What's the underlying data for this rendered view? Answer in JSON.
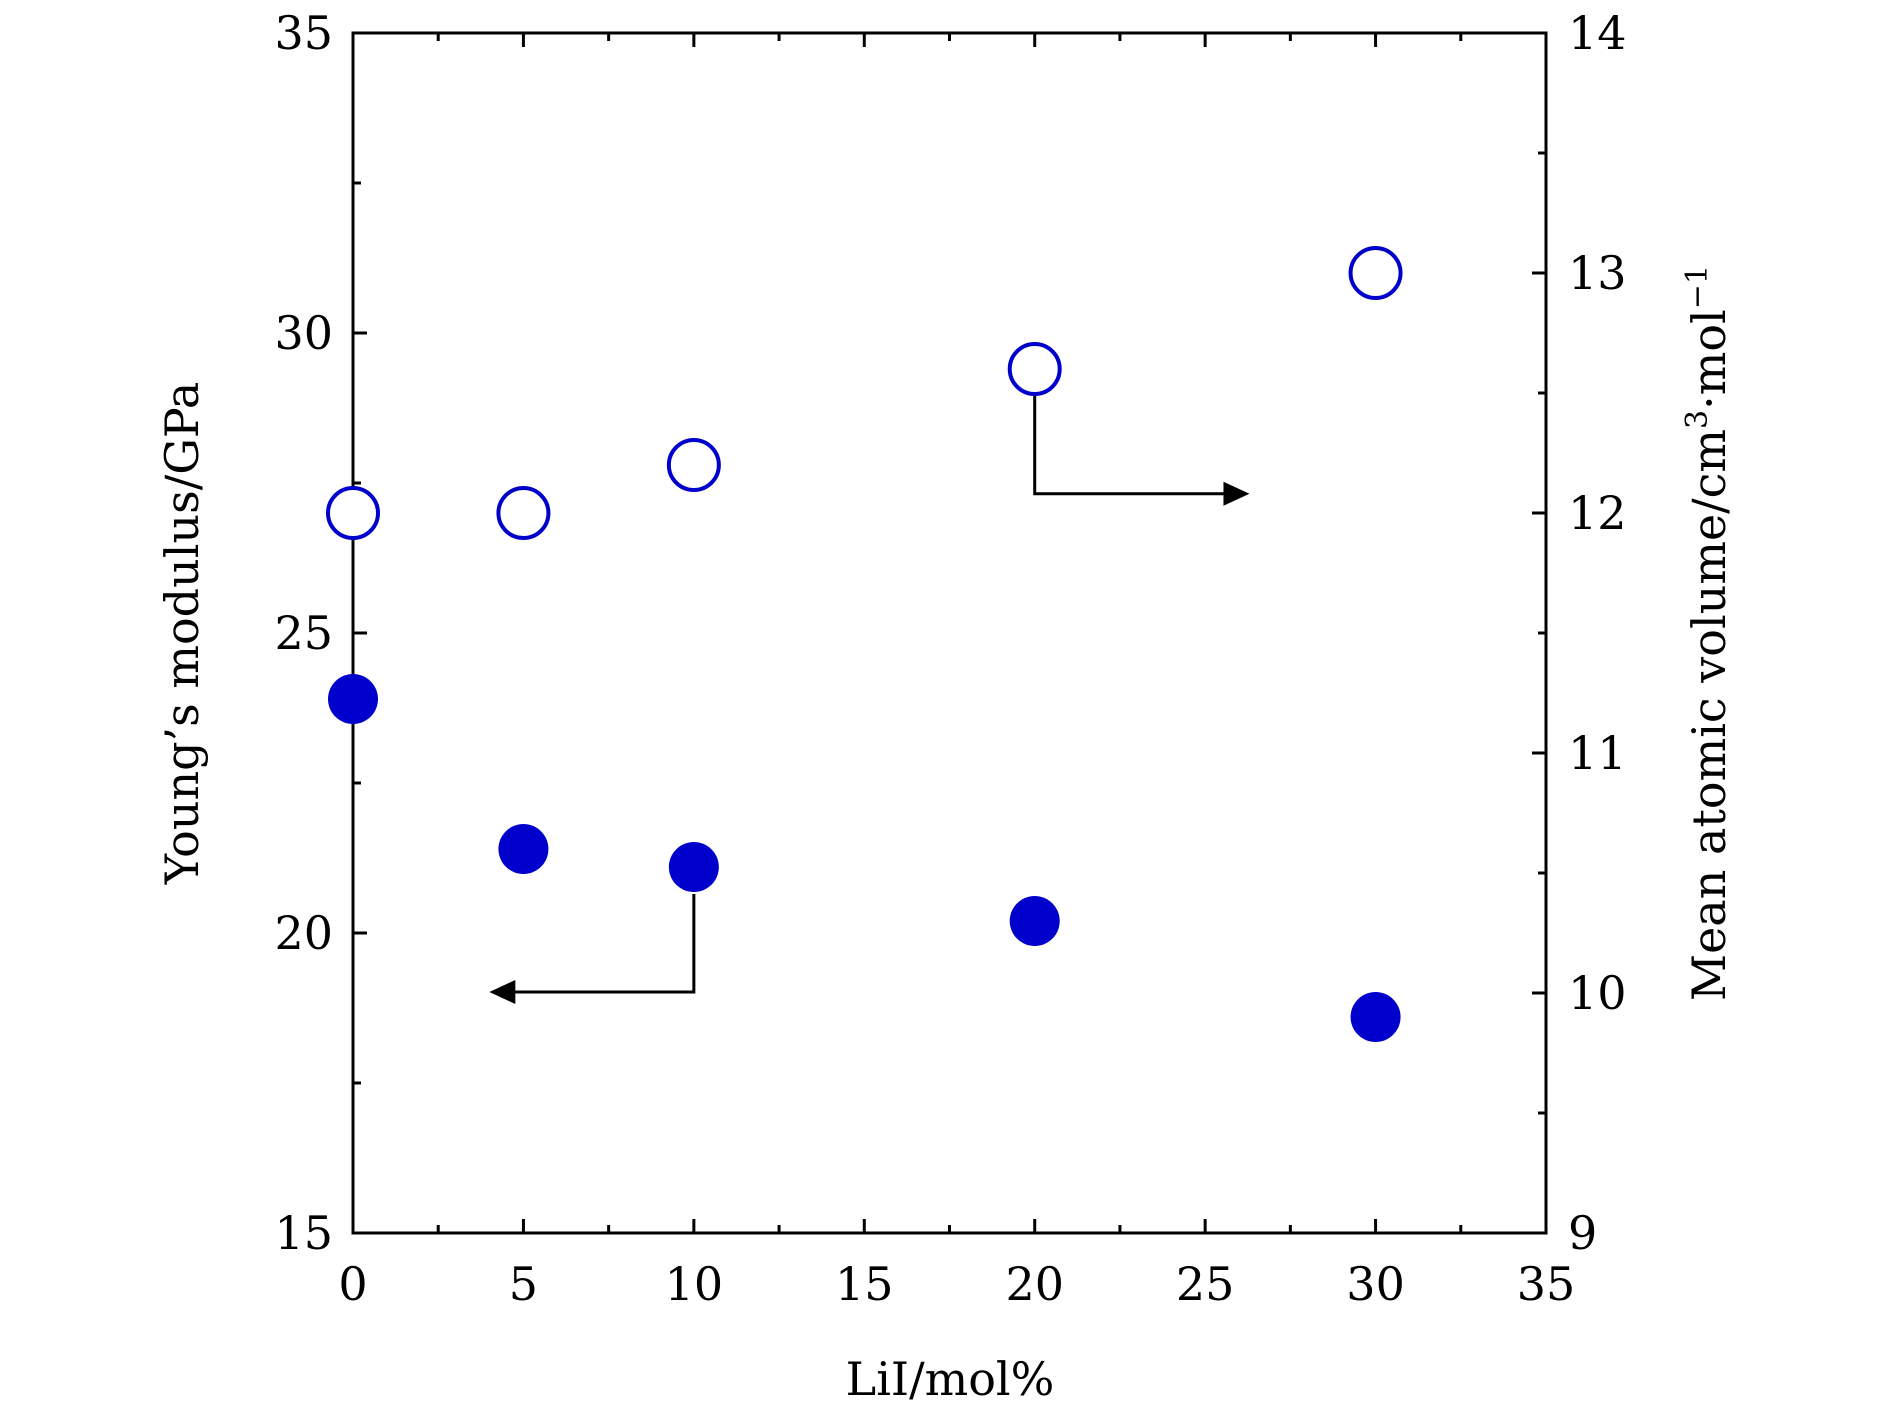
{
  "chart_data": {
    "type": "scatter",
    "xlabel": "LiI/mol%",
    "ylabel_left": "Young’s modulus/GPa",
    "ylabel_right": {
      "base": "Mean atomic volume/cm",
      "sup1": "3",
      "mid": "·mol",
      "sup2": "−1"
    },
    "xlim": [
      0,
      35
    ],
    "ylim_left": [
      15,
      35
    ],
    "ylim_right": [
      9,
      14
    ],
    "x_ticks": [
      "0",
      "5",
      "10",
      "15",
      "20",
      "25",
      "30",
      "35"
    ],
    "y_left_ticks": [
      "15",
      "20",
      "25",
      "30",
      "35"
    ],
    "y_right_ticks": [
      "9",
      "10",
      "11",
      "12",
      "13",
      "14"
    ],
    "grid": false,
    "series": [
      {
        "axis": "left",
        "marker": "filled-circle",
        "color": "#0000cc",
        "x": [
          0,
          5,
          10,
          20,
          30
        ],
        "y": [
          23.9,
          21.4,
          21.1,
          20.2,
          18.6
        ]
      },
      {
        "axis": "right",
        "marker": "open-circle",
        "color": "#0000cc",
        "x": [
          0,
          5,
          10,
          20,
          30
        ],
        "y": [
          12.0,
          12.0,
          12.2,
          12.6,
          13.0
        ]
      }
    ],
    "annotations": [
      {
        "type": "arrow",
        "direction": "left",
        "points_to_axis": "left",
        "from_series": 0
      },
      {
        "type": "arrow",
        "direction": "right",
        "points_to_axis": "right",
        "from_series": 1
      }
    ]
  }
}
